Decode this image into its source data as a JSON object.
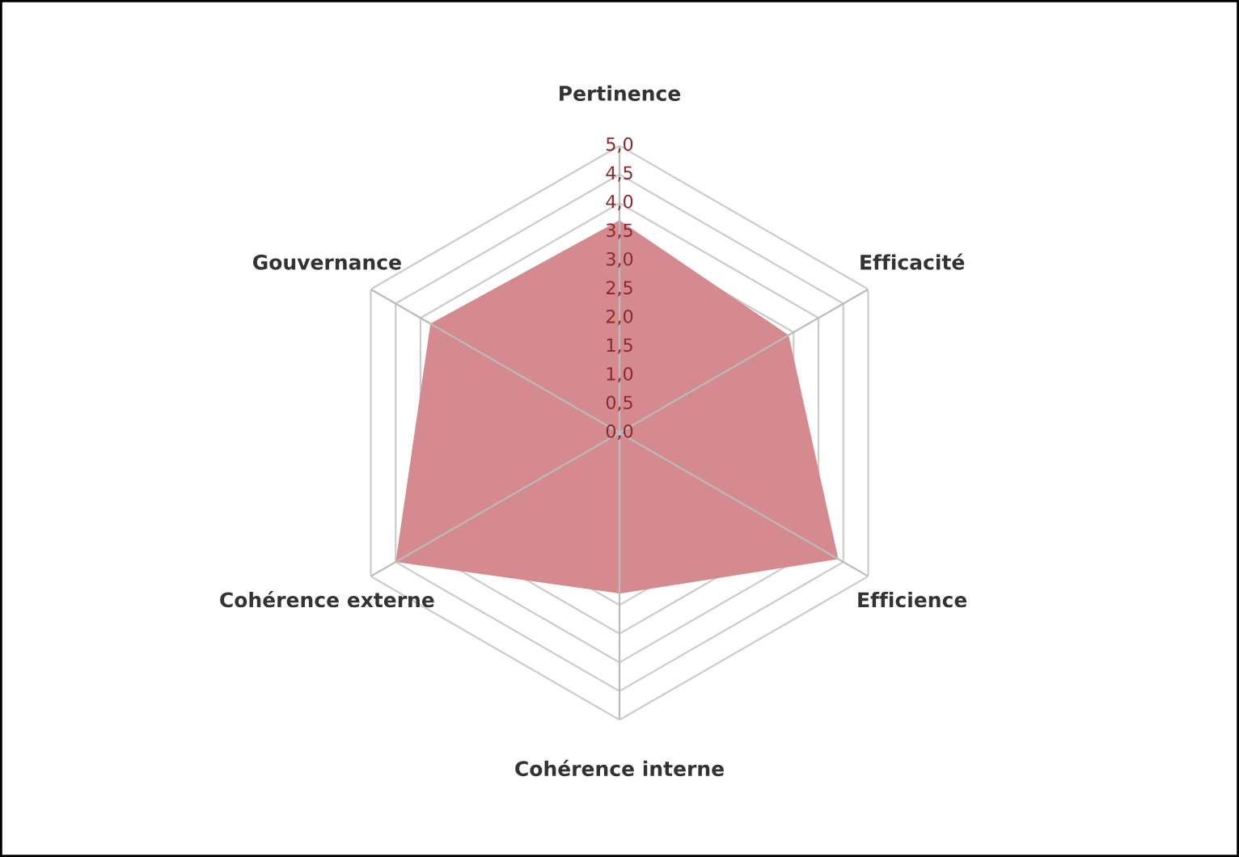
{
  "chart_data": {
    "type": "radar",
    "categories": [
      "Pertinence",
      "Efficacité",
      "Efficience",
      "Cohérence interne",
      "Cohérence externe",
      "Gouvernance"
    ],
    "series": [
      {
        "color": "#d48a8e",
        "values": [
          3.7,
          3.4,
          4.4,
          2.8,
          4.5,
          3.8
        ]
      }
    ],
    "ylim": [
      0,
      5
    ],
    "yticks": [
      {
        "value": 0,
        "label": "0,0"
      },
      {
        "value": 0.5,
        "label": "0,5"
      },
      {
        "value": 1,
        "label": "1,0"
      },
      {
        "value": 1.5,
        "label": "1,5"
      },
      {
        "value": 2,
        "label": "2,0"
      },
      {
        "value": 2.5,
        "label": "2,5"
      },
      {
        "value": 3,
        "label": "3,0"
      },
      {
        "value": 3.5,
        "label": "3,5"
      },
      {
        "value": 4,
        "label": "4,0"
      },
      {
        "value": 4.5,
        "label": "4,5"
      },
      {
        "value": 5,
        "label": "5,0"
      }
    ],
    "grid": true,
    "legend": false
  }
}
